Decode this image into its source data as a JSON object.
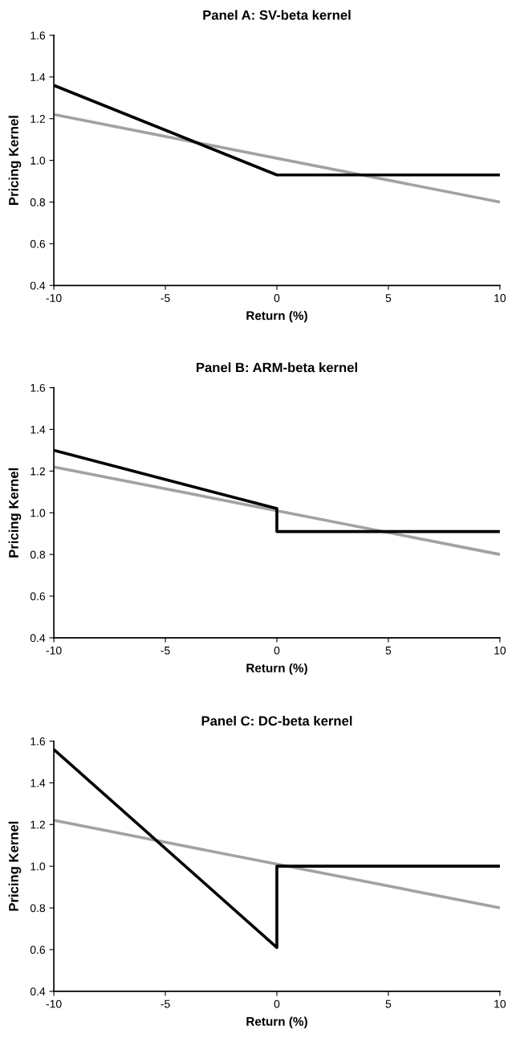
{
  "chart_data": [
    {
      "type": "line",
      "title": "Panel A: SV-beta kernel",
      "xlabel": "Return (%)",
      "ylabel": "Pricing Kernel",
      "xlim": [
        -10,
        10
      ],
      "xticks": [
        -10,
        -5,
        0,
        5,
        10
      ],
      "ylim": [
        0.4,
        1.6
      ],
      "yticks": [
        {
          "value": 0.4,
          "label": "0.4"
        },
        {
          "value": 0.6,
          "label": "0.6"
        },
        {
          "value": 0.8,
          "label": "0.8"
        },
        {
          "value": 1.0,
          "label": "1.0"
        },
        {
          "value": 1.2,
          "label": "1.2"
        },
        {
          "value": 1.4,
          "label": "1.4"
        },
        {
          "value": 1.6,
          "label": "1.6"
        }
      ],
      "grid": false,
      "marker": "none",
      "line_style": "solid",
      "series": [
        {
          "color": "#a0a2a5",
          "x": [
            -10,
            10
          ],
          "values": [
            1.22,
            0.8
          ]
        },
        {
          "color": "#000000",
          "x": [
            -10,
            0,
            10
          ],
          "values": [
            1.36,
            0.93,
            0.93
          ]
        }
      ]
    },
    {
      "type": "line",
      "title": "Panel B: ARM-beta kernel",
      "xlabel": "Return (%)",
      "ylabel": "Pricing Kernel",
      "xlim": [
        -10,
        10
      ],
      "xticks": [
        -10,
        -5,
        0,
        5,
        10
      ],
      "ylim": [
        0.4,
        1.6
      ],
      "yticks": [
        {
          "value": 0.4,
          "label": "0.4"
        },
        {
          "value": 0.6,
          "label": "0.6"
        },
        {
          "value": 0.8,
          "label": "0.8"
        },
        {
          "value": 1.0,
          "label": "1.0"
        },
        {
          "value": 1.2,
          "label": "1.2"
        },
        {
          "value": 1.4,
          "label": "1.4"
        },
        {
          "value": 1.6,
          "label": "1.6"
        }
      ],
      "grid": false,
      "marker": "none",
      "line_style": "solid",
      "series": [
        {
          "color": "#a0a2a5",
          "x": [
            -10,
            10
          ],
          "values": [
            1.22,
            0.8
          ]
        },
        {
          "color": "#000000",
          "x": [
            -10,
            0,
            0,
            10
          ],
          "values": [
            1.3,
            1.02,
            0.91,
            0.91
          ]
        }
      ]
    },
    {
      "type": "line",
      "title": "Panel C: DC-beta kernel",
      "xlabel": "Return (%)",
      "ylabel": "Pricing Kernel",
      "xlim": [
        -10,
        10
      ],
      "xticks": [
        -10,
        -5,
        0,
        5,
        10
      ],
      "ylim": [
        0.4,
        1.6
      ],
      "yticks": [
        {
          "value": 0.4,
          "label": "0.4"
        },
        {
          "value": 0.6,
          "label": "0.6"
        },
        {
          "value": 0.8,
          "label": "0.8"
        },
        {
          "value": 1.0,
          "label": "1.0"
        },
        {
          "value": 1.2,
          "label": "1.2"
        },
        {
          "value": 1.4,
          "label": "1.4"
        },
        {
          "value": 1.6,
          "label": "1.6"
        }
      ],
      "grid": false,
      "marker": "none",
      "line_style": "solid",
      "series": [
        {
          "color": "#a0a2a5",
          "x": [
            -10,
            10
          ],
          "values": [
            1.22,
            0.8
          ]
        },
        {
          "color": "#000000",
          "x": [
            -10,
            0,
            0,
            10
          ],
          "values": [
            1.56,
            0.61,
            1.0,
            1.0
          ]
        }
      ]
    }
  ]
}
